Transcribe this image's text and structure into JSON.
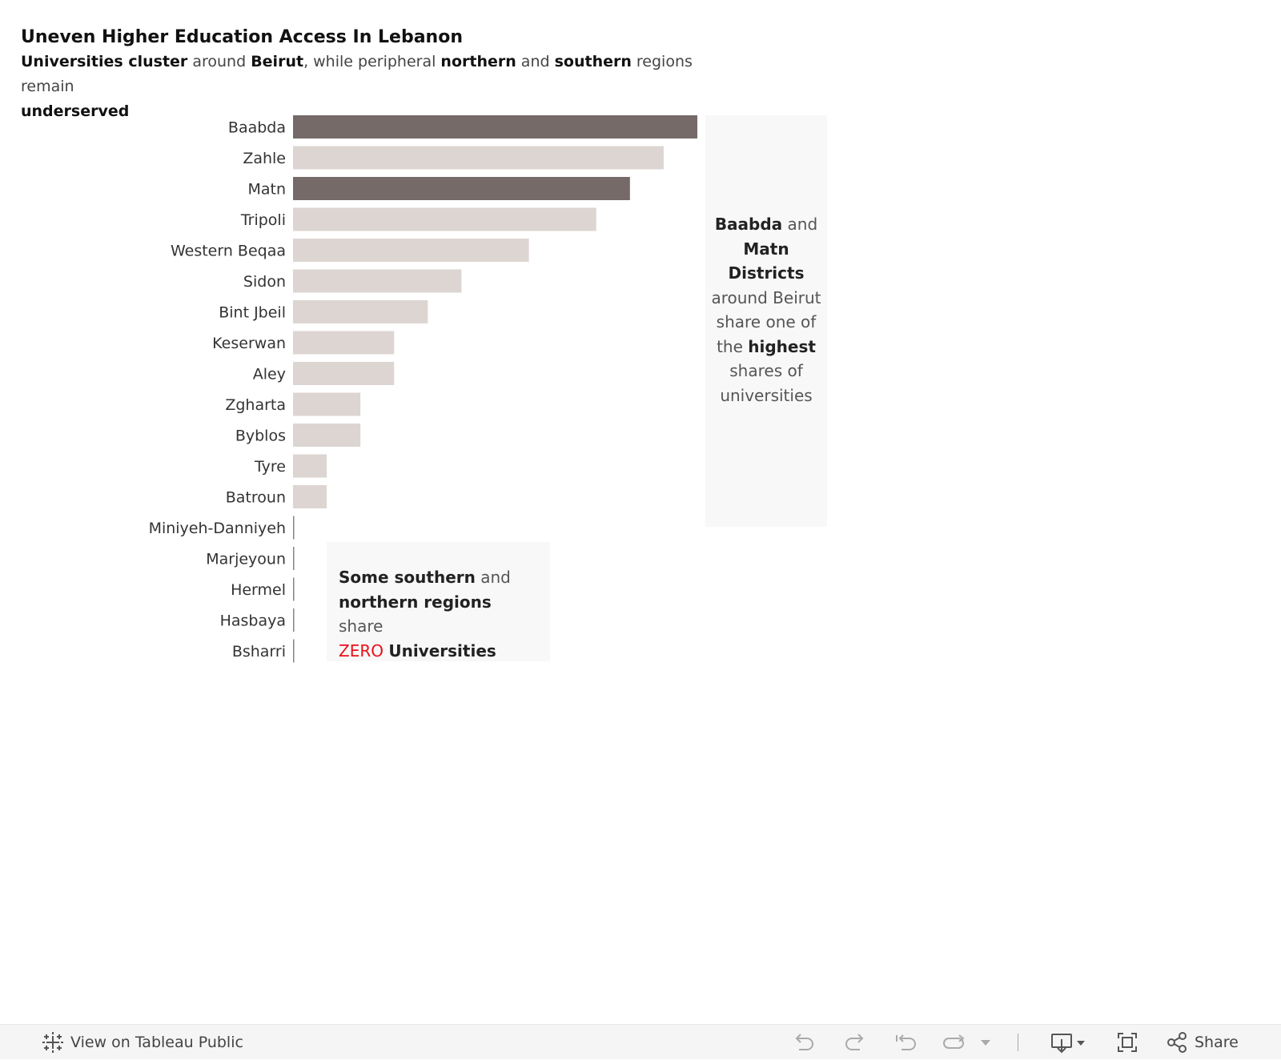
{
  "header": {
    "title": "Uneven Higher Education Access In Lebanon",
    "subtitle_parts": [
      "Universities cluster",
      " around ",
      "Beirut",
      ", while peripheral ",
      "northern",
      " and ",
      "southern",
      " regions remain ",
      "underserved"
    ]
  },
  "chart_data": {
    "type": "bar",
    "orientation": "horizontal",
    "categories": [
      "Baabda",
      "Zahle",
      "Matn",
      "Tripoli",
      "Western Beqaa",
      "Sidon",
      "Bint Jbeil",
      "Keserwan",
      "Aley",
      "Zgharta",
      "Byblos",
      "Tyre",
      "Batroun",
      "Miniyeh-Danniyeh",
      "Marjeyoun",
      "Hermel",
      "Hasbaya",
      "Bsharri"
    ],
    "values": [
      12,
      11,
      10,
      9,
      7,
      5,
      4,
      3,
      3,
      2,
      2,
      1,
      1,
      0,
      0,
      0,
      0,
      0
    ],
    "highlighted": [
      "Baabda",
      "Matn"
    ],
    "colors": {
      "highlight": "#756a68",
      "default": "#ddd5d2"
    },
    "axes_shown": false,
    "grid": false
  },
  "annotations": {
    "right": {
      "parts": [
        "Baabda",
        " and ",
        "Matn",
        " ",
        "Districts",
        " around Beirut share one of the ",
        "highest",
        " shares of universities"
      ]
    },
    "left": {
      "parts": [
        "Some southern",
        " and ",
        "northern regions",
        " share ",
        "ZERO",
        " Universities"
      ],
      "zero_color": "#e8111a"
    }
  },
  "footer": {
    "view_label": "View on Tableau Public",
    "share_label": "Share",
    "icons": [
      "tableau-logo-icon",
      "undo-icon",
      "redo-icon",
      "revert-icon",
      "refresh-icon",
      "dropdown-icon",
      "download-icon",
      "fullscreen-icon",
      "share-icon"
    ]
  }
}
